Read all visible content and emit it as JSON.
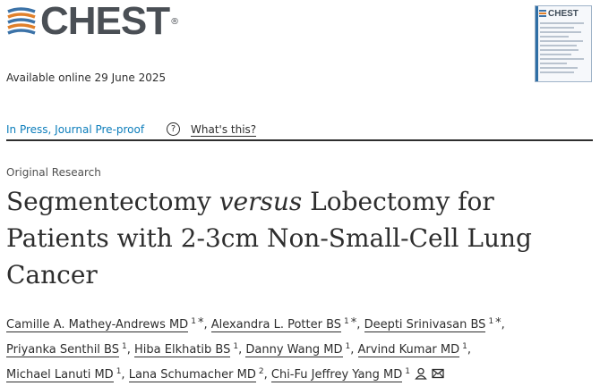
{
  "journal": {
    "logo_text": "CHEST",
    "registered_mark": "®",
    "cover_title": "CHEST"
  },
  "article": {
    "available_online": "Available online 29 June 2025",
    "status_link": "In Press, Journal Pre-proof",
    "whats_this": "What's this?",
    "type": "Original Research",
    "title_part1": "Segmentectomy ",
    "title_italic": "versus",
    "title_part2": " Lobectomy for Patients with 2-3cm Non-Small-Cell Lung Cancer"
  },
  "authors": [
    {
      "name": "Camille A. Mathey-Andrews MD",
      "sup": "1",
      "star": "*",
      "sep": ","
    },
    {
      "name": "Alexandra L. Potter BS",
      "sup": "1",
      "star": "*",
      "sep": ","
    },
    {
      "name": "Deepti Srinivasan BS",
      "sup": "1",
      "star": "*",
      "sep": ","
    },
    {
      "name": "Priyanka Senthil BS",
      "sup": "1",
      "star": "",
      "sep": ","
    },
    {
      "name": "Hiba Elkhatib BS",
      "sup": "1",
      "star": "",
      "sep": ","
    },
    {
      "name": "Danny Wang MD",
      "sup": "1",
      "star": "",
      "sep": ","
    },
    {
      "name": "Arvind Kumar MD",
      "sup": "1",
      "star": "",
      "sep": ","
    },
    {
      "name": "Michael Lanuti MD",
      "sup": "1",
      "star": "",
      "sep": ","
    },
    {
      "name": "Lana Schumacher MD",
      "sup": "2",
      "star": "",
      "sep": ","
    },
    {
      "name": "Chi-Fu Jeffrey Yang MD",
      "sup": "1",
      "star": "",
      "sep": "",
      "icons": [
        "person-icon",
        "envelope-icon"
      ]
    }
  ],
  "colors": {
    "link": "#0c7dbb",
    "logo_orange": "#e0802b",
    "logo_blue": "#3c73a8"
  }
}
